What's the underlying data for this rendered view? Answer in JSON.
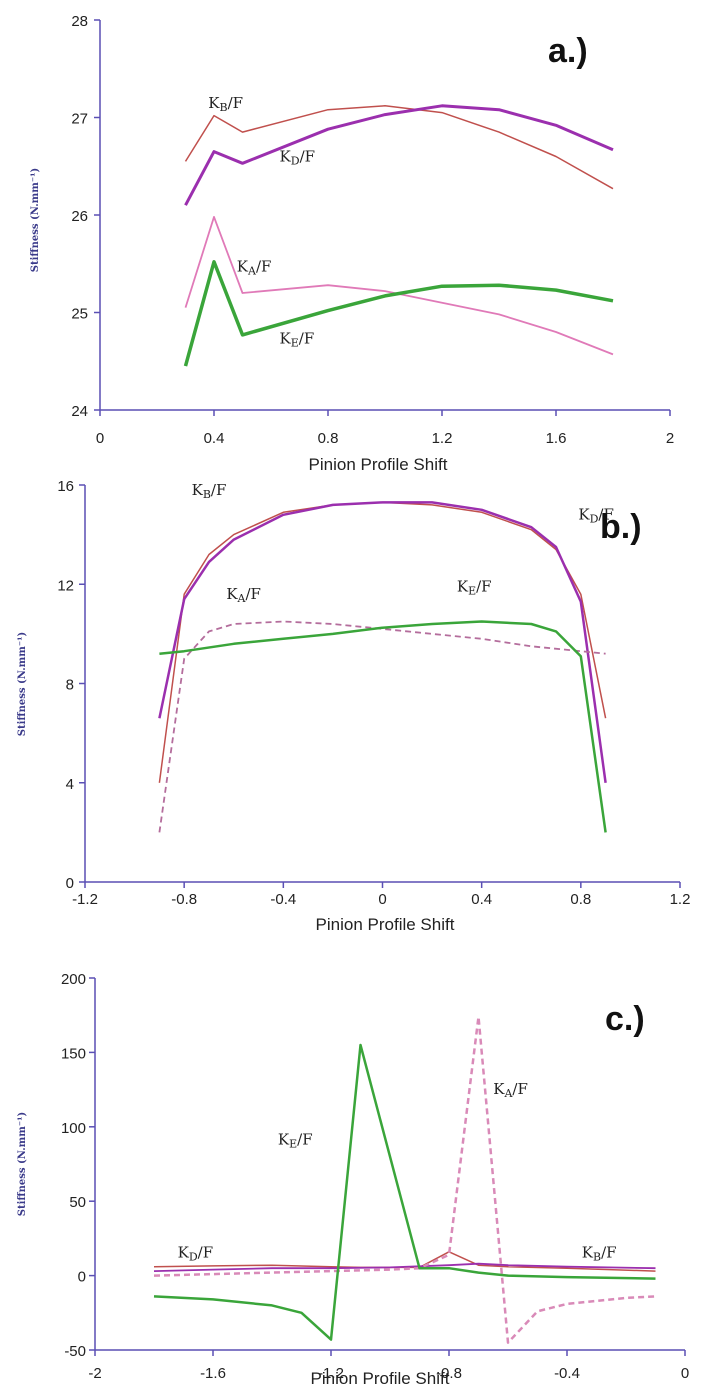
{
  "chart_data": [
    {
      "type": "line",
      "panel_label": "a.)",
      "xlabel": "Pinion Profile Shift",
      "ylabel": "Stiffness (N.mm⁻¹)",
      "xlim": [
        0,
        2
      ],
      "ylim": [
        24,
        28
      ],
      "xticks": [
        "0",
        "0.4",
        "0.8",
        "1.2",
        "1.6",
        "2"
      ],
      "xtick_values": [
        0,
        0.4,
        0.8,
        1.2,
        1.6,
        2
      ],
      "yticks": [
        "24",
        "25",
        "26",
        "27",
        "28"
      ],
      "ytick_values": [
        24,
        25,
        26,
        27,
        28
      ],
      "series": [
        {
          "name": "KB/F",
          "color": "#c0504d",
          "width": 1.5,
          "points": [
            [
              0.3,
              26.55
            ],
            [
              0.4,
              27.02
            ],
            [
              0.5,
              26.85
            ],
            [
              0.8,
              27.08
            ],
            [
              1.0,
              27.12
            ],
            [
              1.2,
              27.05
            ],
            [
              1.4,
              26.85
            ],
            [
              1.6,
              26.6
            ],
            [
              1.8,
              26.27
            ]
          ]
        },
        {
          "name": "KD/F",
          "color": "#9b2fae",
          "width": 3,
          "points": [
            [
              0.3,
              26.1
            ],
            [
              0.4,
              26.65
            ],
            [
              0.5,
              26.53
            ],
            [
              0.8,
              26.88
            ],
            [
              1.0,
              27.03
            ],
            [
              1.2,
              27.12
            ],
            [
              1.4,
              27.08
            ],
            [
              1.6,
              26.92
            ],
            [
              1.8,
              26.67
            ]
          ]
        },
        {
          "name": "KA/F",
          "color": "#e07ab8",
          "width": 1.8,
          "points": [
            [
              0.3,
              25.05
            ],
            [
              0.4,
              25.98
            ],
            [
              0.5,
              25.2
            ],
            [
              0.8,
              25.28
            ],
            [
              1.0,
              25.22
            ],
            [
              1.2,
              25.1
            ],
            [
              1.4,
              24.98
            ],
            [
              1.6,
              24.8
            ],
            [
              1.8,
              24.57
            ]
          ]
        },
        {
          "name": "KE/F",
          "color": "#3aa53a",
          "width": 3.5,
          "points": [
            [
              0.3,
              24.45
            ],
            [
              0.4,
              25.52
            ],
            [
              0.5,
              24.77
            ],
            [
              0.8,
              25.02
            ],
            [
              1.0,
              25.17
            ],
            [
              1.2,
              25.27
            ],
            [
              1.4,
              25.28
            ],
            [
              1.6,
              25.23
            ],
            [
              1.8,
              25.12
            ]
          ]
        }
      ],
      "annotations": [
        {
          "text": "K",
          "sub": "B",
          "rest": "/F",
          "x": 0.38,
          "y": 27.1
        },
        {
          "text": "K",
          "sub": "D",
          "rest": "/F",
          "x": 0.63,
          "y": 26.55
        },
        {
          "text": "K",
          "sub": "A",
          "rest": "/F",
          "x": 0.48,
          "y": 25.42
        },
        {
          "text": "K",
          "sub": "E",
          "rest": "/F",
          "x": 0.63,
          "y": 24.68
        }
      ]
    },
    {
      "type": "line",
      "panel_label": "b.)",
      "xlabel": "Pinion Profile Shift",
      "ylabel": "Stiffness (N.mm⁻¹)",
      "xlim": [
        -1.2,
        1.2
      ],
      "ylim": [
        0,
        16
      ],
      "xticks": [
        "-1.2",
        "-0.8",
        "-0.4",
        "0",
        "0.4",
        "0.8",
        "1.2"
      ],
      "xtick_values": [
        -1.2,
        -0.8,
        -0.4,
        0,
        0.4,
        0.8,
        1.2
      ],
      "yticks": [
        "0",
        "4",
        "8",
        "12",
        "16"
      ],
      "ytick_values": [
        0,
        4,
        8,
        12,
        16
      ],
      "series": [
        {
          "name": "KB/F",
          "color": "#c0504d",
          "width": 1.5,
          "points": [
            [
              -0.9,
              4.0
            ],
            [
              -0.8,
              11.6
            ],
            [
              -0.7,
              13.2
            ],
            [
              -0.6,
              14.0
            ],
            [
              -0.4,
              14.9
            ],
            [
              -0.2,
              15.2
            ],
            [
              0,
              15.3
            ],
            [
              0.2,
              15.2
            ],
            [
              0.4,
              14.9
            ],
            [
              0.6,
              14.2
            ],
            [
              0.7,
              13.4
            ],
            [
              0.8,
              11.6
            ],
            [
              0.9,
              6.6
            ]
          ]
        },
        {
          "name": "KD/F",
          "color": "#9b2fae",
          "width": 2.5,
          "points": [
            [
              -0.9,
              6.6
            ],
            [
              -0.8,
              11.4
            ],
            [
              -0.7,
              12.9
            ],
            [
              -0.6,
              13.8
            ],
            [
              -0.4,
              14.8
            ],
            [
              -0.2,
              15.2
            ],
            [
              0,
              15.3
            ],
            [
              0.2,
              15.3
            ],
            [
              0.4,
              15.0
            ],
            [
              0.6,
              14.3
            ],
            [
              0.7,
              13.5
            ],
            [
              0.8,
              11.3
            ],
            [
              0.9,
              4.0
            ]
          ]
        },
        {
          "name": "KA/F",
          "color": "#b46d9c",
          "width": 1.8,
          "dash": "6,4",
          "points": [
            [
              -0.9,
              2.0
            ],
            [
              -0.8,
              9.0
            ],
            [
              -0.7,
              10.1
            ],
            [
              -0.6,
              10.4
            ],
            [
              -0.4,
              10.5
            ],
            [
              -0.2,
              10.4
            ],
            [
              0,
              10.2
            ],
            [
              0.2,
              10.0
            ],
            [
              0.4,
              9.8
            ],
            [
              0.6,
              9.5
            ],
            [
              0.8,
              9.3
            ],
            [
              0.9,
              9.2
            ]
          ]
        },
        {
          "name": "KE/F",
          "color": "#3aa53a",
          "width": 2.5,
          "points": [
            [
              -0.9,
              9.2
            ],
            [
              -0.8,
              9.3
            ],
            [
              -0.6,
              9.6
            ],
            [
              -0.4,
              9.8
            ],
            [
              -0.2,
              10.0
            ],
            [
              0,
              10.25
            ],
            [
              0.2,
              10.4
            ],
            [
              0.4,
              10.5
            ],
            [
              0.6,
              10.4
            ],
            [
              0.7,
              10.1
            ],
            [
              0.8,
              9.1
            ],
            [
              0.9,
              2.0
            ]
          ]
        }
      ],
      "annotations": [
        {
          "text": "K",
          "sub": "B",
          "rest": "/F",
          "x": -0.77,
          "y": 15.6
        },
        {
          "text": "K",
          "sub": "D",
          "rest": "/F",
          "x": 0.79,
          "y": 14.6
        },
        {
          "text": "K",
          "sub": "A",
          "rest": "/F",
          "x": -0.63,
          "y": 11.4
        },
        {
          "text": "K",
          "sub": "E",
          "rest": "/F",
          "x": 0.3,
          "y": 11.7
        }
      ]
    },
    {
      "type": "line",
      "panel_label": "c.)",
      "xlabel": "Pinion Profile Shift",
      "ylabel": "Stiffness (N.mm⁻¹)",
      "xlim": [
        -2,
        0
      ],
      "ylim": [
        -50,
        200
      ],
      "xticks": [
        "-2",
        "-1.6",
        "-1.2",
        "-0.8",
        "-0.4",
        "0"
      ],
      "xtick_values": [
        -2,
        -1.6,
        -1.2,
        -0.8,
        -0.4,
        0
      ],
      "yticks": [
        "-50",
        "0",
        "50",
        "100",
        "150",
        "200"
      ],
      "ytick_values": [
        -50,
        0,
        50,
        100,
        150,
        200
      ],
      "series": [
        {
          "name": "KB/F",
          "color": "#c0504d",
          "width": 1.5,
          "points": [
            [
              -1.8,
              6
            ],
            [
              -1.6,
              6.5
            ],
            [
              -1.4,
              7
            ],
            [
              -1.2,
              6
            ],
            [
              -1.1,
              5.5
            ],
            [
              -0.9,
              5.5
            ],
            [
              -0.8,
              16
            ],
            [
              -0.7,
              7
            ],
            [
              -0.6,
              6
            ],
            [
              -0.4,
              5
            ],
            [
              -0.1,
              3
            ]
          ]
        },
        {
          "name": "KD/F",
          "color": "#9b2fae",
          "width": 1.8,
          "points": [
            [
              -1.8,
              3
            ],
            [
              -1.6,
              4
            ],
            [
              -1.4,
              5
            ],
            [
              -1.2,
              5
            ],
            [
              -1.0,
              5.5
            ],
            [
              -0.8,
              7
            ],
            [
              -0.7,
              8
            ],
            [
              -0.6,
              7
            ],
            [
              -0.4,
              6
            ],
            [
              -0.1,
              5
            ]
          ]
        },
        {
          "name": "KA/F",
          "color": "#d98ab8",
          "width": 2.5,
          "dash": "6,4",
          "points": [
            [
              -1.8,
              0
            ],
            [
              -1.6,
              1
            ],
            [
              -1.4,
              2
            ],
            [
              -1.2,
              3
            ],
            [
              -1.0,
              4
            ],
            [
              -0.9,
              5
            ],
            [
              -0.8,
              14
            ],
            [
              -0.7,
              174
            ],
            [
              -0.6,
              -45
            ],
            [
              -0.5,
              -24
            ],
            [
              -0.4,
              -19
            ],
            [
              -0.2,
              -15
            ],
            [
              -0.1,
              -14
            ]
          ]
        },
        {
          "name": "KE/F",
          "color": "#3aa53a",
          "width": 2.5,
          "points": [
            [
              -1.8,
              -14
            ],
            [
              -1.6,
              -16
            ],
            [
              -1.4,
              -20
            ],
            [
              -1.3,
              -25
            ],
            [
              -1.2,
              -43
            ],
            [
              -1.1,
              155
            ],
            [
              -0.9,
              5
            ],
            [
              -0.8,
              5
            ],
            [
              -0.7,
              2
            ],
            [
              -0.6,
              0
            ],
            [
              -0.4,
              -1
            ],
            [
              -0.1,
              -2
            ]
          ]
        }
      ],
      "annotations": [
        {
          "text": "K",
          "sub": "D",
          "rest": "/F",
          "x": -1.72,
          "y": 12
        },
        {
          "text": "K",
          "sub": "E",
          "rest": "/F",
          "x": -1.38,
          "y": 88
        },
        {
          "text": "K",
          "sub": "A",
          "rest": "/F",
          "x": -0.65,
          "y": 122
        },
        {
          "text": "K",
          "sub": "B",
          "rest": "/F",
          "x": -0.35,
          "y": 12
        }
      ]
    }
  ]
}
